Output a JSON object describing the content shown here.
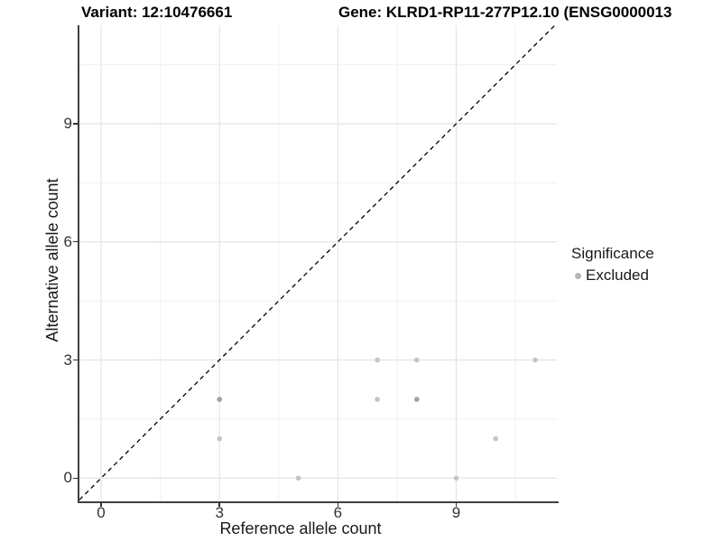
{
  "chart_data": {
    "type": "scatter",
    "title_left": "Variant: 12:10476661",
    "title_right": "Gene: KLRD1-RP11-277P12.10 (ENSG0000013",
    "xlabel": "Reference allele count",
    "ylabel": "Alternative allele count",
    "xlim": [
      -0.55,
      11.55
    ],
    "ylim": [
      -0.59,
      11.5
    ],
    "x_ticks": [
      0,
      3,
      6,
      9
    ],
    "y_ticks": [
      0,
      3,
      6,
      9
    ],
    "x_minor": [
      1.5,
      4.5,
      7.5,
      10.5
    ],
    "y_minor": [
      1.5,
      4.5,
      7.5,
      10.5
    ],
    "grid": true,
    "reference_line": {
      "type": "identity y=x",
      "style": "dashed",
      "color": "#000000"
    },
    "series": [
      {
        "name": "Excluded",
        "point_color": "#c4c4c4",
        "overlap_point_color": "#a2a2a2",
        "points": [
          {
            "x": 3,
            "y": 1,
            "n": 1
          },
          {
            "x": 3,
            "y": 2,
            "n": 2
          },
          {
            "x": 5,
            "y": 0,
            "n": 1
          },
          {
            "x": 7,
            "y": 2,
            "n": 1
          },
          {
            "x": 7,
            "y": 3,
            "n": 1
          },
          {
            "x": 8,
            "y": 2,
            "n": 2
          },
          {
            "x": 8,
            "y": 3,
            "n": 1
          },
          {
            "x": 9,
            "y": 0,
            "n": 1
          },
          {
            "x": 10,
            "y": 1,
            "n": 1
          },
          {
            "x": 11,
            "y": 3,
            "n": 1
          }
        ]
      }
    ],
    "legend": {
      "title": "Significance",
      "position": "right",
      "items": [
        {
          "label": "Excluded",
          "color": "#b4b4b4"
        }
      ]
    },
    "colors": {
      "major_grid": "#e4e4e4",
      "minor_grid": "#f0f0f0",
      "axis_line": "#404040",
      "tick_text": "#333333"
    }
  }
}
